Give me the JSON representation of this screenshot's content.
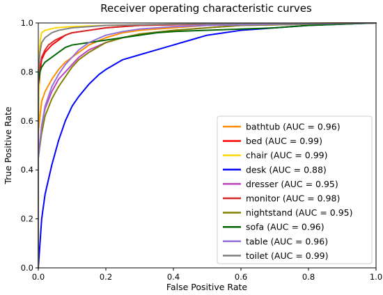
{
  "chart_data": {
    "type": "line",
    "title": "Receiver operating characteristic curves",
    "xlabel": "False Positive Rate",
    "ylabel": "True Positive Rate",
    "xlim": [
      0,
      1
    ],
    "ylim": [
      0,
      1
    ],
    "xticks": [
      "0.0",
      "0.2",
      "0.4",
      "0.6",
      "0.8",
      "1.0"
    ],
    "yticks": [
      "0.0",
      "0.2",
      "0.4",
      "0.6",
      "0.8",
      "1.0"
    ],
    "grid": false,
    "legend_position": "lower-right",
    "series": [
      {
        "name": "bathtub (AUC = 0.96)",
        "color": "#ff8c00",
        "points": [
          [
            0,
            0
          ],
          [
            0,
            0.55
          ],
          [
            0.005,
            0.62
          ],
          [
            0.01,
            0.68
          ],
          [
            0.02,
            0.72
          ],
          [
            0.04,
            0.77
          ],
          [
            0.06,
            0.81
          ],
          [
            0.08,
            0.84
          ],
          [
            0.1,
            0.86
          ],
          [
            0.12,
            0.88
          ],
          [
            0.15,
            0.91
          ],
          [
            0.2,
            0.94
          ],
          [
            0.25,
            0.96
          ],
          [
            0.3,
            0.97
          ],
          [
            0.4,
            0.98
          ],
          [
            0.5,
            0.99
          ],
          [
            0.6,
            0.993
          ],
          [
            0.8,
            0.997
          ],
          [
            1,
            1
          ]
        ]
      },
      {
        "name": "bed (AUC = 0.99)",
        "color": "#ff0000",
        "points": [
          [
            0,
            0
          ],
          [
            0,
            0.7
          ],
          [
            0.005,
            0.8
          ],
          [
            0.01,
            0.85
          ],
          [
            0.02,
            0.88
          ],
          [
            0.04,
            0.91
          ],
          [
            0.06,
            0.93
          ],
          [
            0.08,
            0.95
          ],
          [
            0.1,
            0.96
          ],
          [
            0.15,
            0.97
          ],
          [
            0.2,
            0.98
          ],
          [
            0.3,
            0.99
          ],
          [
            0.5,
            0.995
          ],
          [
            0.7,
            0.998
          ],
          [
            1,
            1
          ]
        ]
      },
      {
        "name": "chair (AUC = 0.99)",
        "color": "#ffd700",
        "points": [
          [
            0,
            0
          ],
          [
            0,
            0.5
          ],
          [
            0.003,
            0.88
          ],
          [
            0.006,
            0.93
          ],
          [
            0.01,
            0.96
          ],
          [
            0.02,
            0.97
          ],
          [
            0.05,
            0.98
          ],
          [
            0.1,
            0.985
          ],
          [
            0.2,
            0.99
          ],
          [
            0.4,
            0.995
          ],
          [
            0.6,
            0.998
          ],
          [
            1,
            1
          ]
        ]
      },
      {
        "name": "desk (AUC = 0.88)",
        "color": "#0000ff",
        "points": [
          [
            0,
            0
          ],
          [
            0.01,
            0.2
          ],
          [
            0.02,
            0.3
          ],
          [
            0.04,
            0.42
          ],
          [
            0.06,
            0.52
          ],
          [
            0.08,
            0.6
          ],
          [
            0.1,
            0.66
          ],
          [
            0.12,
            0.7
          ],
          [
            0.15,
            0.75
          ],
          [
            0.18,
            0.79
          ],
          [
            0.2,
            0.81
          ],
          [
            0.25,
            0.85
          ],
          [
            0.3,
            0.87
          ],
          [
            0.35,
            0.89
          ],
          [
            0.4,
            0.91
          ],
          [
            0.45,
            0.93
          ],
          [
            0.5,
            0.95
          ],
          [
            0.55,
            0.96
          ],
          [
            0.6,
            0.97
          ],
          [
            0.7,
            0.98
          ],
          [
            0.8,
            0.99
          ],
          [
            0.9,
            0.995
          ],
          [
            1,
            1
          ]
        ]
      },
      {
        "name": "dresser (AUC = 0.95)",
        "color": "#bf40bf",
        "points": [
          [
            0,
            0
          ],
          [
            0,
            0.45
          ],
          [
            0.01,
            0.58
          ],
          [
            0.02,
            0.65
          ],
          [
            0.04,
            0.72
          ],
          [
            0.06,
            0.77
          ],
          [
            0.08,
            0.8
          ],
          [
            0.1,
            0.83
          ],
          [
            0.12,
            0.86
          ],
          [
            0.15,
            0.89
          ],
          [
            0.2,
            0.92
          ],
          [
            0.25,
            0.94
          ],
          [
            0.3,
            0.955
          ],
          [
            0.4,
            0.97
          ],
          [
            0.5,
            0.98
          ],
          [
            0.6,
            0.99
          ],
          [
            0.8,
            0.995
          ],
          [
            1,
            1
          ]
        ]
      },
      {
        "name": "monitor (AUC = 0.98)",
        "color": "#d62728",
        "points": [
          [
            0,
            0
          ],
          [
            0,
            0.75
          ],
          [
            0.005,
            0.82
          ],
          [
            0.01,
            0.86
          ],
          [
            0.02,
            0.89
          ],
          [
            0.03,
            0.91
          ],
          [
            0.05,
            0.93
          ],
          [
            0.08,
            0.95
          ],
          [
            0.1,
            0.96
          ],
          [
            0.15,
            0.97
          ],
          [
            0.2,
            0.98
          ],
          [
            0.3,
            0.99
          ],
          [
            0.5,
            0.995
          ],
          [
            1,
            1
          ]
        ]
      },
      {
        "name": "nightstand (AUC = 0.95)",
        "color": "#808000",
        "points": [
          [
            0,
            0
          ],
          [
            0,
            0.45
          ],
          [
            0.01,
            0.55
          ],
          [
            0.02,
            0.62
          ],
          [
            0.04,
            0.69
          ],
          [
            0.06,
            0.74
          ],
          [
            0.08,
            0.78
          ],
          [
            0.1,
            0.82
          ],
          [
            0.12,
            0.85
          ],
          [
            0.15,
            0.88
          ],
          [
            0.2,
            0.92
          ],
          [
            0.25,
            0.94
          ],
          [
            0.3,
            0.955
          ],
          [
            0.4,
            0.97
          ],
          [
            0.5,
            0.98
          ],
          [
            0.6,
            0.99
          ],
          [
            0.8,
            0.995
          ],
          [
            1,
            1
          ]
        ]
      },
      {
        "name": "sofa (AUC = 0.96)",
        "color": "#006400",
        "points": [
          [
            0,
            0
          ],
          [
            0,
            0.75
          ],
          [
            0.005,
            0.8
          ],
          [
            0.01,
            0.82
          ],
          [
            0.02,
            0.84
          ],
          [
            0.04,
            0.86
          ],
          [
            0.06,
            0.88
          ],
          [
            0.08,
            0.9
          ],
          [
            0.1,
            0.91
          ],
          [
            0.15,
            0.92
          ],
          [
            0.2,
            0.93
          ],
          [
            0.25,
            0.94
          ],
          [
            0.3,
            0.95
          ],
          [
            0.35,
            0.96
          ],
          [
            0.4,
            0.965
          ],
          [
            0.5,
            0.97
          ],
          [
            0.6,
            0.975
          ],
          [
            0.7,
            0.98
          ],
          [
            0.8,
            0.99
          ],
          [
            0.9,
            0.995
          ],
          [
            1,
            1
          ]
        ]
      },
      {
        "name": "table (AUC = 0.96)",
        "color": "#9370db",
        "points": [
          [
            0,
            0
          ],
          [
            0,
            0.45
          ],
          [
            0.01,
            0.58
          ],
          [
            0.02,
            0.66
          ],
          [
            0.04,
            0.74
          ],
          [
            0.06,
            0.79
          ],
          [
            0.08,
            0.83
          ],
          [
            0.1,
            0.86
          ],
          [
            0.12,
            0.89
          ],
          [
            0.15,
            0.92
          ],
          [
            0.2,
            0.95
          ],
          [
            0.25,
            0.965
          ],
          [
            0.3,
            0.975
          ],
          [
            0.4,
            0.985
          ],
          [
            0.5,
            0.99
          ],
          [
            0.7,
            0.995
          ],
          [
            1,
            1
          ]
        ]
      },
      {
        "name": "toilet (AUC = 0.99)",
        "color": "#808080",
        "points": [
          [
            0,
            0
          ],
          [
            0,
            0.8
          ],
          [
            0.005,
            0.88
          ],
          [
            0.01,
            0.92
          ],
          [
            0.02,
            0.94
          ],
          [
            0.04,
            0.96
          ],
          [
            0.06,
            0.97
          ],
          [
            0.1,
            0.98
          ],
          [
            0.2,
            0.99
          ],
          [
            0.4,
            0.995
          ],
          [
            0.7,
            0.998
          ],
          [
            1,
            1
          ]
        ]
      }
    ]
  }
}
